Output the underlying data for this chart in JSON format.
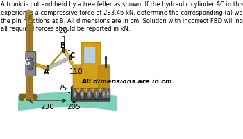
{
  "title_text": "A trunk is cut and held by a tree feller as shown. If the hydraulic cylinder AC in this position is known to\nexperience a compressive force of 283.46 kN, determine the corresponding (a) weight of the trunk, and (b)\nthe pin reactions at B. All dimensions are in cm. Solution with incorrect FBD will not be considered. Also,\nall required forces should be reported in kN.",
  "title_fontsize": 6.0,
  "annotation_fontsize": 7.0,
  "dim_label_fontsize": 7.5,
  "bg_color": "#ffffff",
  "ground_color": "#7ecfb8",
  "dim_230": "230",
  "dim_205": "205",
  "dim_110": "110",
  "dim_20": "20",
  "dim_75": "75",
  "label_A": "A",
  "label_B": "B",
  "label_C": "C",
  "label_G": "G",
  "note": "All dimensions are in cm.",
  "trunk_color": "#a07830",
  "trunk_dark": "#7a5a18",
  "yellow_main": "#d4a017",
  "yellow_dark": "#b8860b",
  "yellow_light": "#e8c040",
  "gray_dark": "#444444",
  "gray_med": "#666666"
}
